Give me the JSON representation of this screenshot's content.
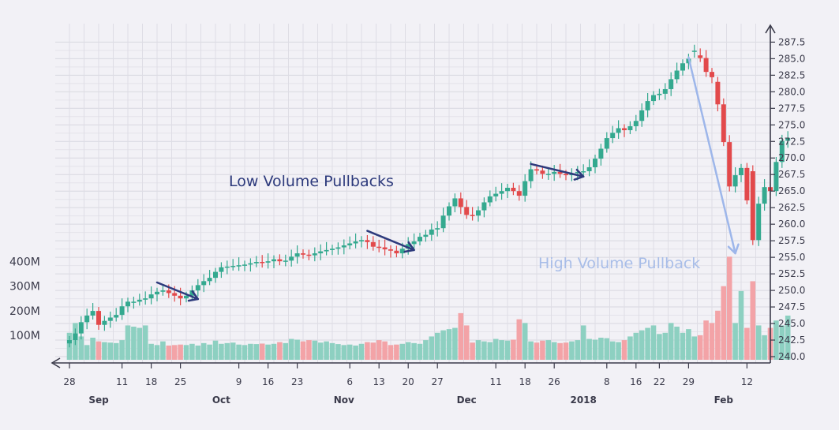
{
  "chart_data": {
    "type": "candlestick",
    "title": "",
    "xlabel": "",
    "ylabel": "",
    "ylim": [
      240,
      288.5
    ],
    "volume_ylim": [
      0,
      450
    ],
    "y_ticks": [
      "240.0",
      "242.5",
      "245.0",
      "247.5",
      "250.0",
      "252.5",
      "255.0",
      "257.5",
      "260.0",
      "262.5",
      "265.0",
      "267.5",
      "270.0",
      "272.5",
      "275.0",
      "277.5",
      "280.0",
      "282.5",
      "285.0",
      "287.5"
    ],
    "volume_ticks": [
      "100M",
      "200M",
      "300M",
      "400M"
    ],
    "volume_tick_values": [
      100,
      200,
      300,
      400
    ],
    "x_day_ticks": [
      {
        "label": "28",
        "i": 0
      },
      {
        "label": "11",
        "i": 9
      },
      {
        "label": "18",
        "i": 14
      },
      {
        "label": "25",
        "i": 19
      },
      {
        "label": "9",
        "i": 29
      },
      {
        "label": "16",
        "i": 34
      },
      {
        "label": "23",
        "i": 39
      },
      {
        "label": "6",
        "i": 48
      },
      {
        "label": "13",
        "i": 53
      },
      {
        "label": "20",
        "i": 58
      },
      {
        "label": "27",
        "i": 63
      },
      {
        "label": "11",
        "i": 73
      },
      {
        "label": "18",
        "i": 78
      },
      {
        "label": "26",
        "i": 83
      },
      {
        "label": "8",
        "i": 92
      },
      {
        "label": "16",
        "i": 97
      },
      {
        "label": "22",
        "i": 101
      },
      {
        "label": "29",
        "i": 106
      },
      {
        "label": "12",
        "i": 116
      }
    ],
    "x_month_labels": [
      {
        "label": "Sep",
        "i": 5
      },
      {
        "label": "Oct",
        "i": 26
      },
      {
        "label": "Nov",
        "i": 47
      },
      {
        "label": "Dec",
        "i": 68
      },
      {
        "label": "2018",
        "i": 88
      },
      {
        "label": "Feb",
        "i": 112
      }
    ],
    "closes": [
      242.5,
      243.5,
      245.2,
      246.2,
      246.9,
      244.8,
      245.4,
      245.9,
      246.3,
      247.6,
      248.3,
      248.3,
      248.6,
      248.8,
      249.4,
      249.8,
      250.0,
      249.6,
      249.2,
      248.8,
      249.2,
      250.0,
      250.8,
      251.4,
      251.9,
      252.8,
      253.5,
      253.6,
      253.7,
      253.8,
      253.9,
      254.1,
      254.3,
      254.2,
      254.4,
      254.7,
      254.4,
      254.5,
      255.1,
      255.6,
      255.4,
      255.3,
      255.6,
      255.9,
      256.1,
      256.3,
      256.5,
      256.8,
      257.1,
      257.4,
      257.6,
      257.3,
      256.6,
      256.5,
      256.2,
      256.0,
      255.6,
      256.3,
      257.0,
      257.4,
      258.1,
      258.4,
      259.2,
      259.4,
      261.3,
      262.7,
      263.9,
      262.6,
      261.4,
      261.3,
      262.1,
      263.3,
      264.2,
      264.6,
      265.0,
      265.5,
      265.0,
      264.3,
      266.5,
      268.3,
      268.1,
      267.6,
      267.6,
      267.9,
      267.6,
      267.4,
      267.7,
      267.9,
      268.0,
      268.6,
      269.9,
      271.4,
      273.0,
      273.8,
      274.5,
      274.2,
      274.8,
      275.6,
      277.2,
      278.6,
      279.5,
      279.7,
      280.4,
      281.9,
      283.2,
      284.3,
      285.0,
      286.2,
      285.1,
      283.0,
      282.2,
      278.1,
      272.4,
      265.7,
      267.4,
      268.5,
      263.6,
      257.6,
      263.1,
      265.6,
      265.0,
      269.4,
      272.6,
      273.0
    ],
    "opens": [
      242.0,
      242.5,
      243.5,
      245.2,
      246.2,
      246.9,
      244.8,
      245.4,
      245.9,
      246.3,
      247.6,
      248.3,
      248.3,
      248.6,
      248.8,
      249.4,
      249.8,
      250.0,
      249.6,
      249.2,
      248.8,
      249.2,
      250.0,
      250.8,
      251.4,
      251.9,
      252.8,
      253.5,
      253.6,
      253.7,
      253.8,
      253.9,
      254.1,
      254.3,
      254.2,
      254.4,
      254.7,
      254.4,
      254.5,
      255.1,
      255.6,
      255.4,
      255.3,
      255.6,
      255.9,
      256.1,
      256.3,
      256.5,
      256.8,
      257.1,
      257.4,
      257.6,
      257.3,
      256.6,
      256.5,
      256.2,
      256.0,
      255.6,
      256.3,
      257.0,
      257.4,
      258.1,
      258.4,
      259.2,
      259.4,
      261.3,
      262.7,
      263.9,
      262.6,
      261.4,
      261.3,
      262.1,
      263.3,
      264.2,
      264.6,
      265.0,
      265.5,
      265.0,
      264.3,
      266.5,
      268.3,
      268.1,
      267.6,
      267.6,
      267.9,
      267.6,
      267.4,
      267.7,
      267.9,
      268.0,
      268.6,
      269.9,
      271.4,
      273.0,
      273.8,
      274.5,
      274.2,
      274.8,
      275.6,
      277.2,
      278.6,
      279.5,
      279.7,
      280.4,
      281.9,
      283.2,
      284.3,
      286.2,
      285.5,
      285.1,
      283.0,
      281.5,
      278.1,
      272.4,
      265.7,
      267.4,
      268.5,
      268.0,
      257.6,
      263.1,
      265.6,
      265.0,
      269.4,
      272.6
    ],
    "volumes": [
      110,
      150,
      95,
      60,
      90,
      75,
      72,
      70,
      68,
      80,
      140,
      135,
      130,
      140,
      65,
      60,
      75,
      58,
      60,
      62,
      60,
      65,
      58,
      68,
      62,
      78,
      65,
      68,
      70,
      62,
      60,
      65,
      64,
      66,
      62,
      65,
      72,
      68,
      85,
      82,
      75,
      80,
      78,
      70,
      75,
      68,
      64,
      60,
      62,
      58,
      65,
      72,
      70,
      80,
      75,
      60,
      62,
      65,
      72,
      68,
      65,
      80,
      95,
      110,
      120,
      125,
      130,
      190,
      140,
      70,
      80,
      75,
      72,
      85,
      80,
      78,
      82,
      165,
      150,
      75,
      70,
      78,
      80,
      72,
      68,
      70,
      75,
      80,
      140,
      85,
      82,
      90,
      88,
      75,
      72,
      80,
      95,
      110,
      120,
      130,
      140,
      105,
      110,
      150,
      135,
      110,
      125,
      95,
      100,
      160,
      150,
      200,
      300,
      420,
      150,
      280,
      130,
      320,
      140,
      100,
      130,
      160,
      140,
      180
    ],
    "annotations": [
      {
        "text": "Low Volume Pullbacks",
        "color": "#2d3a7c"
      },
      {
        "text": "High Volume Pullback",
        "color": "#a8bde8"
      }
    ],
    "colors": {
      "up": "#34a98f",
      "down": "#e2494b",
      "vol_up": "#8dd0c1",
      "vol_down": "#f3a3a7",
      "arrow": "#2d3a7c",
      "arrow_light": "#9db6ea",
      "grid": "#d8d8e0"
    }
  }
}
